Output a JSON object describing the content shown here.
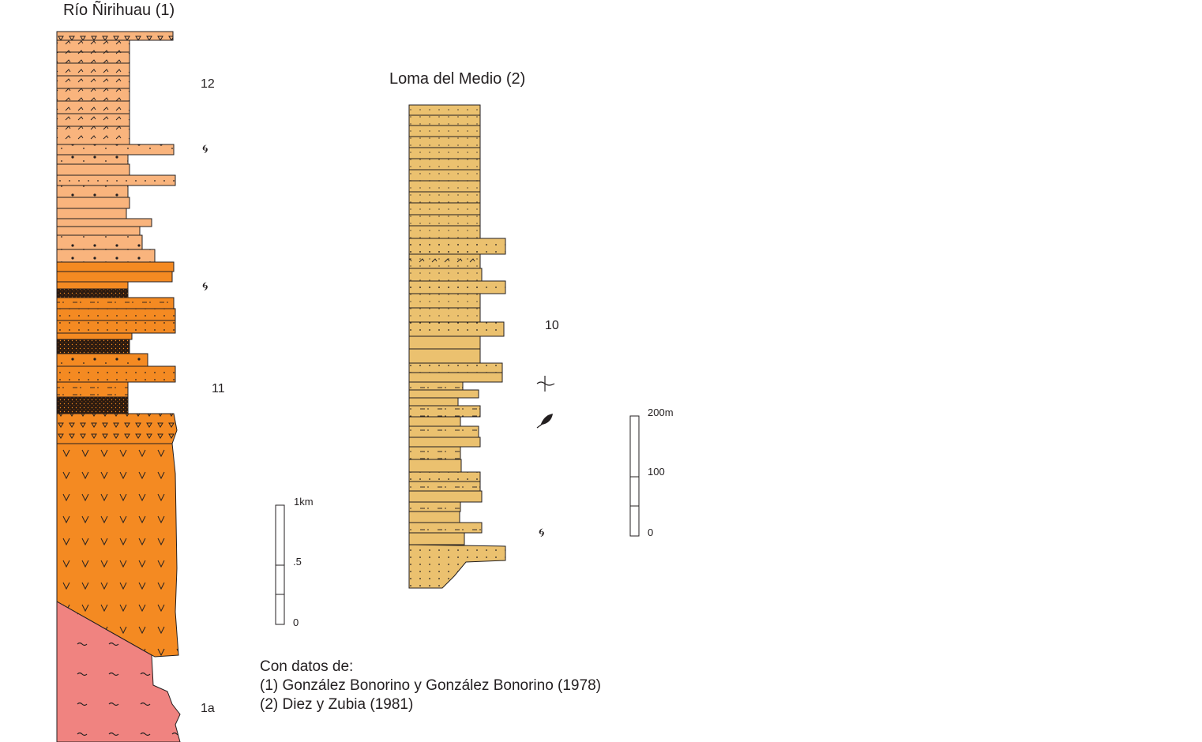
{
  "sections": {
    "rio_nirihuau": {
      "title": "Río Ñirihuau (1)",
      "units": [
        "12",
        "11",
        "1a"
      ],
      "scale": {
        "top": "1km",
        "mid": ".5",
        "bottom": "0"
      }
    },
    "loma_del_medio": {
      "title": "Loma del Medio (2)",
      "units": [
        "10"
      ],
      "scale": {
        "top": "200m",
        "mid": "100",
        "bottom": "0"
      }
    }
  },
  "symbols": {
    "gastropod": "gastropod-fossil-icon",
    "plant_debris": "plant-fossil-icon",
    "leaf": "leaf-fossil-icon"
  },
  "colors": {
    "light_orange": "#f9b47d",
    "orange": "#f48a22",
    "dark": "#2b1a10",
    "pink": "#f08380",
    "yellow": "#ebc16f",
    "outline": "#231f20"
  },
  "credits": {
    "heading": "Con datos de:",
    "ref1": "(1) González Bonorino y González Bonorino (1978)",
    "ref2": "(2) Diez y Zubia (1981)"
  }
}
